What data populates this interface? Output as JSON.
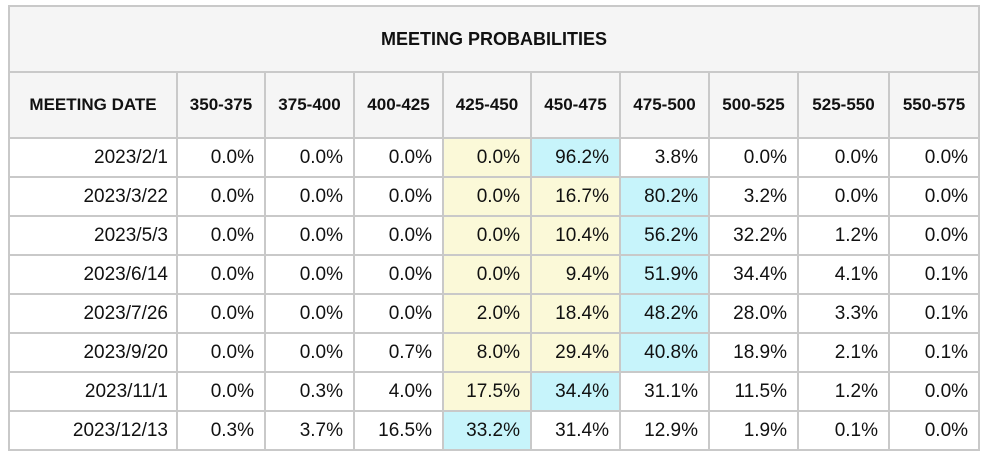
{
  "title": "MEETING PROBABILITIES",
  "columns": [
    "MEETING DATE",
    "350-375",
    "375-400",
    "400-425",
    "425-450",
    "450-475",
    "475-500",
    "500-525",
    "525-550",
    "550-575"
  ],
  "colors": {
    "yellow_highlight": "#fbf9d8",
    "cyan_highlight": "#c7f4fb",
    "header_bg": "#f5f5f5",
    "border": "#c9c9c9"
  },
  "rows": [
    {
      "date": "2023/2/1",
      "values": [
        "0.0%",
        "0.0%",
        "0.0%",
        "0.0%",
        "96.2%",
        "3.8%",
        "0.0%",
        "0.0%",
        "0.0%"
      ],
      "highlights": [
        "",
        "",
        "",
        "yellow",
        "cyan",
        "",
        "",
        "",
        ""
      ]
    },
    {
      "date": "2023/3/22",
      "values": [
        "0.0%",
        "0.0%",
        "0.0%",
        "0.0%",
        "16.7%",
        "80.2%",
        "3.2%",
        "0.0%",
        "0.0%"
      ],
      "highlights": [
        "",
        "",
        "",
        "yellow",
        "yellow",
        "cyan",
        "",
        "",
        ""
      ]
    },
    {
      "date": "2023/5/3",
      "values": [
        "0.0%",
        "0.0%",
        "0.0%",
        "0.0%",
        "10.4%",
        "56.2%",
        "32.2%",
        "1.2%",
        "0.0%"
      ],
      "highlights": [
        "",
        "",
        "",
        "yellow",
        "yellow",
        "cyan",
        "",
        "",
        ""
      ]
    },
    {
      "date": "2023/6/14",
      "values": [
        "0.0%",
        "0.0%",
        "0.0%",
        "0.0%",
        "9.4%",
        "51.9%",
        "34.4%",
        "4.1%",
        "0.1%"
      ],
      "highlights": [
        "",
        "",
        "",
        "yellow",
        "yellow",
        "cyan",
        "",
        "",
        ""
      ]
    },
    {
      "date": "2023/7/26",
      "values": [
        "0.0%",
        "0.0%",
        "0.0%",
        "2.0%",
        "18.4%",
        "48.2%",
        "28.0%",
        "3.3%",
        "0.1%"
      ],
      "highlights": [
        "",
        "",
        "",
        "yellow",
        "yellow",
        "cyan",
        "",
        "",
        ""
      ]
    },
    {
      "date": "2023/9/20",
      "values": [
        "0.0%",
        "0.0%",
        "0.7%",
        "8.0%",
        "29.4%",
        "40.8%",
        "18.9%",
        "2.1%",
        "0.1%"
      ],
      "highlights": [
        "",
        "",
        "",
        "yellow",
        "yellow",
        "cyan",
        "",
        "",
        ""
      ]
    },
    {
      "date": "2023/11/1",
      "values": [
        "0.0%",
        "0.3%",
        "4.0%",
        "17.5%",
        "34.4%",
        "31.1%",
        "11.5%",
        "1.2%",
        "0.0%"
      ],
      "highlights": [
        "",
        "",
        "",
        "yellow",
        "cyan",
        "",
        "",
        "",
        ""
      ]
    },
    {
      "date": "2023/12/13",
      "values": [
        "0.3%",
        "3.7%",
        "16.5%",
        "33.2%",
        "31.4%",
        "12.9%",
        "1.9%",
        "0.1%",
        "0.0%"
      ],
      "highlights": [
        "",
        "",
        "",
        "cyan",
        "",
        "",
        "",
        "",
        ""
      ]
    }
  ]
}
